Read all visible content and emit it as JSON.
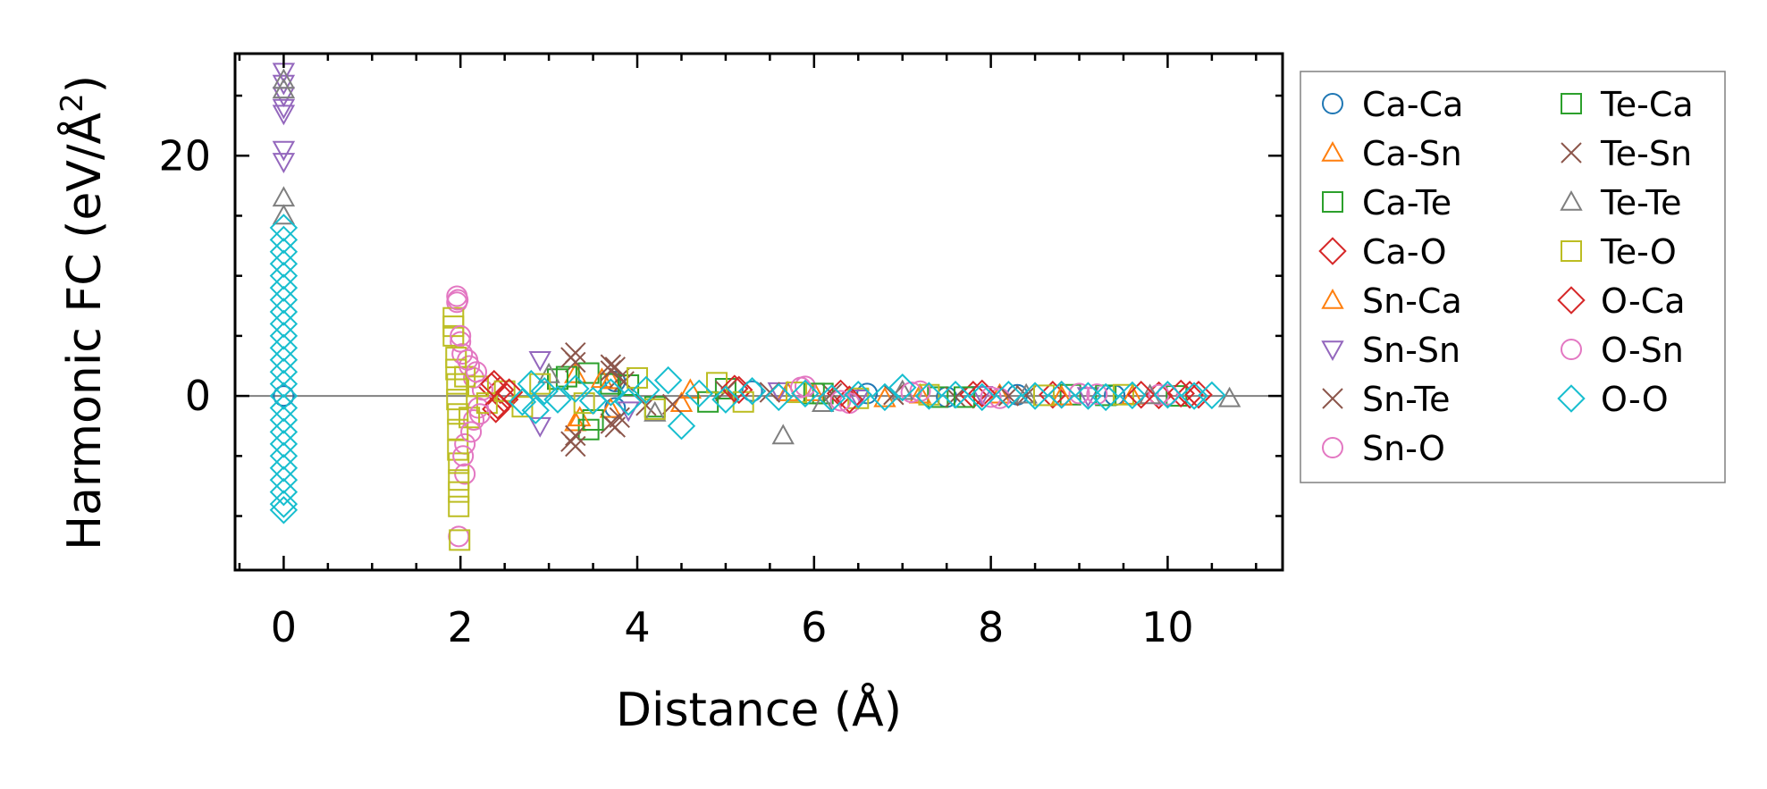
{
  "chart_data": {
    "type": "scatter",
    "title": "",
    "xlabel": "Distance (Å)",
    "ylabel_main": "Harmonic FC (eV/Å",
    "ylabel_sup": "2",
    "ylabel_end": ")",
    "xlim": [
      -0.55,
      11.3
    ],
    "ylim": [
      -14.5,
      28.5
    ],
    "xticks": [
      0,
      2,
      4,
      6,
      8,
      10
    ],
    "xtick_labels": [
      "0",
      "2",
      "4",
      "6",
      "8",
      "10"
    ],
    "xminor": [
      -0.5,
      0.5,
      1,
      1.5,
      2.5,
      3,
      3.5,
      4.5,
      5,
      5.5,
      6.5,
      7,
      7.5,
      8.5,
      9,
      9.5,
      10.5,
      11
    ],
    "yticks": [
      0,
      20
    ],
    "ytick_labels": [
      "0",
      "20"
    ],
    "yminor": [
      -10,
      -5,
      5,
      10,
      15,
      25
    ],
    "reference_line_y": 0,
    "legend_position": "outside right",
    "series": [
      {
        "name": "Ca-Ca",
        "marker": "circle",
        "color": "#1f77b4",
        "points": [
          [
            0,
            0.0
          ],
          [
            3.75,
            1.2
          ],
          [
            3.75,
            -1.0
          ],
          [
            5.3,
            0.4
          ],
          [
            6.6,
            0.2
          ],
          [
            7.5,
            -0.1
          ],
          [
            8.3,
            0.1
          ],
          [
            9.4,
            0.05
          ]
        ]
      },
      {
        "name": "Ca-Sn",
        "marker": "triangle-up",
        "color": "#ff7f0e",
        "points": [
          [
            3.3,
            -2.2
          ],
          [
            3.3,
            1.8
          ],
          [
            3.7,
            1.3
          ],
          [
            3.7,
            -1.1
          ],
          [
            4.6,
            0.5
          ],
          [
            5.7,
            0.3
          ],
          [
            6.8,
            -0.2
          ],
          [
            8.1,
            0.1
          ],
          [
            9.6,
            0.0
          ]
        ]
      },
      {
        "name": "Ca-Te",
        "marker": "square",
        "color": "#2ca02c",
        "points": [
          [
            3.2,
            1.6
          ],
          [
            3.45,
            -2.8
          ],
          [
            3.45,
            1.9
          ],
          [
            3.7,
            1.0
          ],
          [
            4.2,
            -0.9
          ],
          [
            5.0,
            0.6
          ],
          [
            6.1,
            0.2
          ],
          [
            7.4,
            -0.1
          ],
          [
            8.9,
            0.1
          ],
          [
            10.1,
            0.0
          ]
        ]
      },
      {
        "name": "Ca-O",
        "marker": "diamond",
        "color": "#d62728",
        "points": [
          [
            2.35,
            0.8
          ],
          [
            2.4,
            -1.1
          ],
          [
            2.45,
            0.5
          ],
          [
            2.5,
            -0.3
          ],
          [
            5.15,
            0.5
          ],
          [
            6.3,
            0.2
          ],
          [
            7.8,
            0.1
          ],
          [
            8.7,
            0.1
          ],
          [
            9.9,
            0.05
          ],
          [
            10.25,
            0.1
          ]
        ]
      },
      {
        "name": "Sn-Ca",
        "marker": "triangle-up",
        "color": "#ff7f0e",
        "points": [
          [
            3.35,
            -1.8
          ],
          [
            3.6,
            1.4
          ],
          [
            4.5,
            -0.6
          ],
          [
            6.0,
            0.3
          ],
          [
            7.2,
            0.1
          ],
          [
            8.8,
            -0.05
          ]
        ]
      },
      {
        "name": "Sn-Sn",
        "marker": "triangle-down",
        "color": "#9467bd",
        "points": [
          [
            0,
            27.0
          ],
          [
            0,
            26.0
          ],
          [
            0,
            25.0
          ],
          [
            0,
            24.0
          ],
          [
            0,
            23.5
          ],
          [
            0,
            20.5
          ],
          [
            0,
            19.5
          ],
          [
            2.9,
            3.0
          ],
          [
            2.9,
            -2.5
          ],
          [
            3.9,
            -1.2
          ],
          [
            5.6,
            0.4
          ],
          [
            6.5,
            -0.2
          ],
          [
            7.9,
            0.1
          ],
          [
            9.1,
            0.0
          ]
        ]
      },
      {
        "name": "Sn-Te",
        "marker": "x",
        "color": "#8c564b",
        "points": [
          [
            3.3,
            3.6
          ],
          [
            3.3,
            2.8
          ],
          [
            3.3,
            -3.3
          ],
          [
            3.3,
            -4.2
          ],
          [
            3.7,
            2.6
          ],
          [
            3.7,
            2.1
          ],
          [
            3.7,
            -2.3
          ],
          [
            3.8,
            -1.8
          ],
          [
            3.8,
            1.5
          ],
          [
            4.1,
            -0.8
          ],
          [
            5.0,
            0.4
          ],
          [
            6.2,
            0.2
          ],
          [
            7.6,
            -0.1
          ],
          [
            8.4,
            0.05
          ]
        ]
      },
      {
        "name": "Sn-O",
        "marker": "circle",
        "color": "#e377c2",
        "points": [
          [
            1.96,
            8.3
          ],
          [
            1.96,
            7.8
          ],
          [
            1.98,
            -11.7
          ],
          [
            2.0,
            4.5
          ],
          [
            2.02,
            3.5
          ],
          [
            2.05,
            -4.0
          ],
          [
            2.05,
            -6.5
          ],
          [
            2.1,
            2.5
          ],
          [
            2.15,
            -2.0
          ],
          [
            2.15,
            1.5
          ],
          [
            2.2,
            -1.0
          ],
          [
            2.25,
            0.5
          ],
          [
            5.9,
            0.8
          ],
          [
            6.4,
            -0.6
          ],
          [
            7.2,
            0.4
          ],
          [
            8.1,
            -0.2
          ],
          [
            9.0,
            0.2
          ],
          [
            9.9,
            0.1
          ]
        ]
      },
      {
        "name": "Te-Ca",
        "marker": "square",
        "color": "#2ca02c",
        "points": [
          [
            3.1,
            1.4
          ],
          [
            3.5,
            -2.0
          ],
          [
            3.9,
            0.9
          ],
          [
            4.8,
            -0.5
          ],
          [
            6.0,
            0.2
          ],
          [
            7.7,
            -0.1
          ],
          [
            9.3,
            0.05
          ]
        ]
      },
      {
        "name": "Te-Sn",
        "marker": "x",
        "color": "#8c564b",
        "points": [
          [
            3.25,
            3.2
          ],
          [
            3.25,
            -3.8
          ],
          [
            3.75,
            2.4
          ],
          [
            3.75,
            -2.6
          ],
          [
            3.85,
            1.2
          ],
          [
            4.4,
            -0.7
          ],
          [
            5.5,
            0.3
          ],
          [
            6.9,
            0.1
          ],
          [
            8.2,
            0.0
          ]
        ]
      },
      {
        "name": "Te-Te",
        "marker": "triangle-up",
        "color": "#7f7f7f",
        "points": [
          [
            0,
            26.3
          ],
          [
            0,
            25.5
          ],
          [
            0,
            16.5
          ],
          [
            0,
            15.0
          ],
          [
            3.0,
            1.8
          ],
          [
            4.2,
            -1.4
          ],
          [
            5.65,
            -3.3
          ],
          [
            6.1,
            -0.6
          ],
          [
            7.0,
            0.4
          ],
          [
            8.4,
            0.1
          ],
          [
            9.8,
            0.05
          ],
          [
            10.7,
            -0.2
          ]
        ]
      },
      {
        "name": "Te-O",
        "marker": "square",
        "color": "#bcbd22",
        "points": [
          [
            1.92,
            6.5
          ],
          [
            1.92,
            5.8
          ],
          [
            1.92,
            5.0
          ],
          [
            1.95,
            3.2
          ],
          [
            1.95,
            2.2
          ],
          [
            1.96,
            1.0
          ],
          [
            1.96,
            -0.3
          ],
          [
            1.97,
            -1.5
          ],
          [
            1.97,
            -2.8
          ],
          [
            1.97,
            -4.5
          ],
          [
            1.98,
            -5.6
          ],
          [
            1.98,
            -7.0
          ],
          [
            1.98,
            -8.0
          ],
          [
            1.98,
            -9.2
          ],
          [
            1.99,
            -12.0
          ],
          [
            2.05,
            1.6
          ],
          [
            2.1,
            -1.8
          ],
          [
            2.2,
            0.8
          ],
          [
            2.3,
            -0.6
          ],
          [
            2.5,
            0.4
          ],
          [
            2.7,
            -0.9
          ],
          [
            2.9,
            1.0
          ],
          [
            3.4,
            -0.6
          ],
          [
            4.0,
            1.5
          ],
          [
            4.2,
            -1.1
          ],
          [
            4.9,
            1.1
          ],
          [
            5.2,
            -0.5
          ],
          [
            5.8,
            0.3
          ],
          [
            6.5,
            -0.2
          ],
          [
            7.3,
            0.1
          ],
          [
            8.6,
            0.05
          ],
          [
            9.5,
            0.1
          ]
        ]
      },
      {
        "name": "O-Ca",
        "marker": "diamond",
        "color": "#d62728",
        "points": [
          [
            2.38,
            1.0
          ],
          [
            2.42,
            -0.8
          ],
          [
            2.55,
            0.3
          ],
          [
            5.1,
            0.6
          ],
          [
            6.4,
            -0.3
          ],
          [
            7.9,
            0.2
          ],
          [
            8.8,
            0.1
          ],
          [
            9.7,
            0.1
          ],
          [
            10.15,
            0.2
          ],
          [
            10.35,
            0.1
          ]
        ]
      },
      {
        "name": "O-Sn",
        "marker": "circle",
        "color": "#e377c2",
        "points": [
          [
            1.97,
            8.0
          ],
          [
            2.0,
            5.0
          ],
          [
            2.03,
            -5.0
          ],
          [
            2.08,
            3.0
          ],
          [
            2.12,
            -3.0
          ],
          [
            2.18,
            2.0
          ],
          [
            2.22,
            -1.5
          ],
          [
            5.85,
            0.7
          ],
          [
            6.3,
            -0.4
          ],
          [
            7.1,
            0.3
          ],
          [
            8.0,
            -0.1
          ],
          [
            9.2,
            0.15
          ],
          [
            10.0,
            0.1
          ]
        ]
      },
      {
        "name": "O-O",
        "marker": "diamond",
        "color": "#17becf",
        "points": [
          [
            0,
            14.0
          ],
          [
            0,
            13.0
          ],
          [
            0,
            12.0
          ],
          [
            0,
            11.0
          ],
          [
            0,
            10.0
          ],
          [
            0,
            9.0
          ],
          [
            0,
            8.0
          ],
          [
            0,
            7.0
          ],
          [
            0,
            6.0
          ],
          [
            0,
            5.0
          ],
          [
            0,
            4.0
          ],
          [
            0,
            3.0
          ],
          [
            0,
            2.0
          ],
          [
            0,
            1.0
          ],
          [
            0,
            0.0
          ],
          [
            0,
            -1.0
          ],
          [
            0,
            -2.0
          ],
          [
            0,
            -3.0
          ],
          [
            0,
            -4.0
          ],
          [
            0,
            -5.0
          ],
          [
            0,
            -6.0
          ],
          [
            0,
            -7.0
          ],
          [
            0,
            -8.0
          ],
          [
            0,
            -9.0
          ],
          [
            0,
            -9.5
          ],
          [
            2.7,
            -0.5
          ],
          [
            2.8,
            1.0
          ],
          [
            2.85,
            -1.2
          ],
          [
            2.95,
            0.4
          ],
          [
            3.1,
            -0.3
          ],
          [
            3.3,
            0.6
          ],
          [
            3.5,
            -0.4
          ],
          [
            3.7,
            0.3
          ],
          [
            3.9,
            -0.5
          ],
          [
            4.1,
            0.5
          ],
          [
            4.35,
            1.3
          ],
          [
            4.5,
            -2.5
          ],
          [
            4.7,
            0.2
          ],
          [
            5.0,
            -0.3
          ],
          [
            5.3,
            0.4
          ],
          [
            5.6,
            -0.1
          ],
          [
            5.9,
            0.2
          ],
          [
            6.2,
            -0.2
          ],
          [
            6.5,
            0.1
          ],
          [
            6.8,
            -0.1
          ],
          [
            7.0,
            0.7
          ],
          [
            7.3,
            0.0
          ],
          [
            7.6,
            0.1
          ],
          [
            7.9,
            -0.1
          ],
          [
            8.2,
            0.1
          ],
          [
            8.5,
            0.0
          ],
          [
            8.8,
            0.1
          ],
          [
            9.1,
            0.0
          ],
          [
            9.3,
            -0.1
          ],
          [
            9.6,
            0.05
          ],
          [
            10.0,
            0.1
          ],
          [
            10.3,
            0.0
          ],
          [
            10.5,
            0.05
          ]
        ]
      }
    ]
  }
}
